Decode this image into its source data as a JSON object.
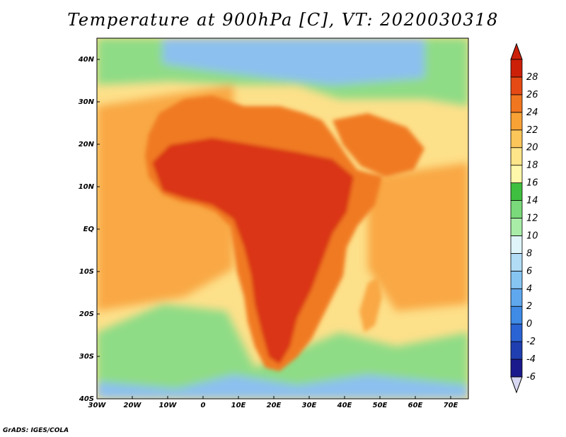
{
  "title": "Temperature at 900hPa [C], VT: 2020030318",
  "credit": "GrADS: IGES/COLA",
  "map": {
    "lon_range": [
      -30,
      75
    ],
    "lat_range": [
      -40,
      45
    ],
    "lon_ticks": [
      "30W",
      "20W",
      "10W",
      "0",
      "10E",
      "20E",
      "30E",
      "40E",
      "50E",
      "60E",
      "70E"
    ],
    "lat_ticks": [
      "40S",
      "30S",
      "20S",
      "10S",
      "EQ",
      "10N",
      "20N",
      "30N",
      "40N"
    ]
  },
  "colorbar": {
    "labels": [
      "-6",
      "-4",
      "-2",
      "0",
      "2",
      "4",
      "6",
      "8",
      "10",
      "12",
      "14",
      "16",
      "18",
      "20",
      "22",
      "24",
      "26",
      "28"
    ],
    "colors": [
      "#1a1a8c",
      "#1f3fb0",
      "#2a63d4",
      "#3f8be6",
      "#5fa8ee",
      "#86c4f2",
      "#b2dcf6",
      "#dff4f9",
      "#a8eca8",
      "#7ad97a",
      "#3fbf3f",
      "#fff7aa",
      "#ffe58a",
      "#fdc65a",
      "#f8a236",
      "#f07620",
      "#e54a14",
      "#cc2008"
    ]
  },
  "colors": {
    "land_hot": "#d93412",
    "land_warm": "#f07a22",
    "ocean_warm": "#f9a844",
    "ocean_mild": "#fde08a",
    "sea_cool": "#8fdc86",
    "sea_cold": "#8cc0ef"
  }
}
